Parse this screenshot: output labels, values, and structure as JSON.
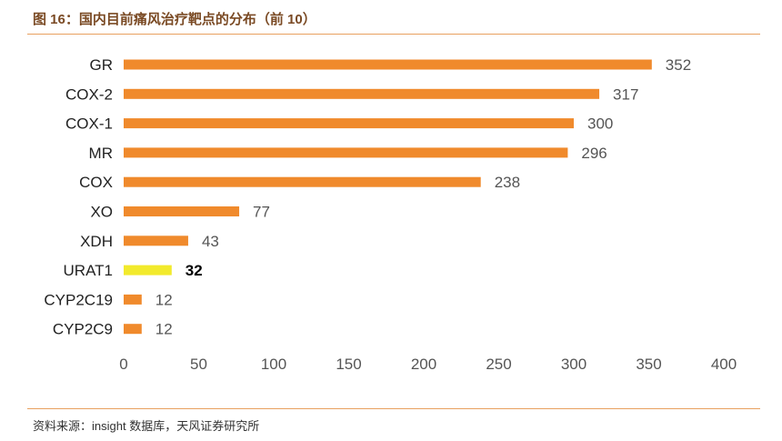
{
  "figure": {
    "title": "图 16：国内目前痛风治疗靶点的分布（前 10）",
    "source": "资料来源：insight 数据库，天风证券研究所"
  },
  "chart_data": {
    "type": "bar",
    "orientation": "horizontal",
    "categories": [
      "GR",
      "COX-2",
      "COX-1",
      "MR",
      "COX",
      "XO",
      "XDH",
      "URAT1",
      "CYP2C19",
      "CYP2C9"
    ],
    "values": [
      352,
      317,
      300,
      296,
      238,
      77,
      43,
      32,
      12,
      12
    ],
    "highlight": "URAT1",
    "xlim": [
      0,
      400
    ],
    "xticks": [
      0,
      50,
      100,
      150,
      200,
      250,
      300,
      350,
      400
    ],
    "grid": false,
    "colors": {
      "bar": "#f08a2c",
      "highlight": "#f2ea2c"
    }
  }
}
